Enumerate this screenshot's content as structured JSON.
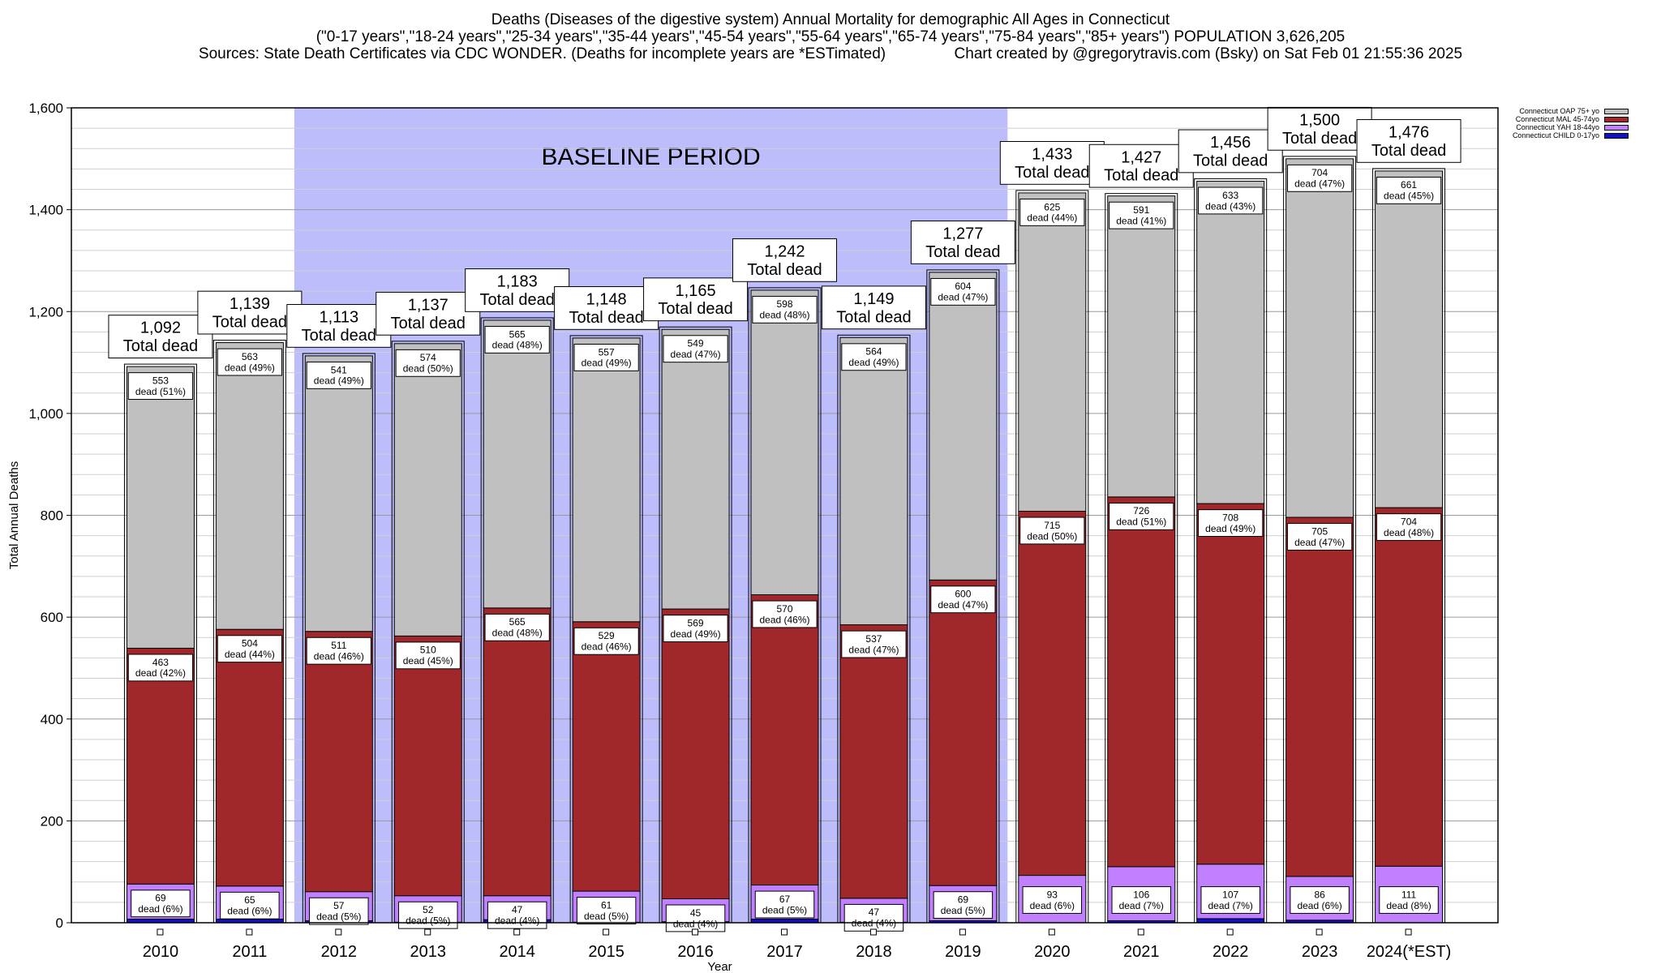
{
  "title_lines": [
    "Deaths (Diseases of the digestive system) Annual Mortality for demographic All Ages in Connecticut",
    "(\"0-17 years\",\"18-24 years\",\"25-34 years\",\"35-44 years\",\"45-54 years\",\"55-64 years\",\"65-74 years\",\"75-84 years\",\"85+ years\") POPULATION 3,626,205",
    "Sources: State Death Certificates via CDC WONDER. (Deaths for incomplete years are *ESTimated)                Chart created by @gregorytravis.com (Bsky) on Sat Feb 01 21:55:36 2025"
  ],
  "chart_data": {
    "type": "bar",
    "stacked": true,
    "xlabel": "Year",
    "ylabel": "Total Annual Deaths",
    "ylim": [
      0,
      1600
    ],
    "yticks": [
      "0",
      "200",
      "400",
      "600",
      "800",
      "1,000",
      "1,200",
      "1,400",
      "1,600"
    ],
    "grid": true,
    "legend_position": "top-right",
    "shaded_region": {
      "label": "BASELINE PERIOD",
      "from": "2012",
      "to": "2019",
      "color": "#bdbdfb"
    },
    "total_suffix": "Total dead",
    "categories": [
      "2010",
      "2011",
      "2012",
      "2013",
      "2014",
      "2015",
      "2016",
      "2017",
      "2018",
      "2019",
      "2020",
      "2021",
      "2022",
      "2023",
      "2024(*EST)"
    ],
    "totals": [
      "1,092",
      "1,139",
      "1,113",
      "1,137",
      "1,183",
      "1,148",
      "1,165",
      "1,242",
      "1,149",
      "1,277",
      "1,433",
      "1,427",
      "1,456",
      "1,500",
      "1,476"
    ],
    "series": [
      {
        "name": "Connecticut CHILD 0-17yo",
        "color": "#1010c8",
        "values": [
          7,
          7,
          4,
          1,
          6,
          1,
          2,
          7,
          1,
          4,
          0,
          4,
          8,
          5,
          0
        ],
        "labels": [
          "",
          "",
          "",
          "",
          "",
          "",
          "",
          "",
          "",
          "",
          "",
          "",
          "",
          "",
          ""
        ]
      },
      {
        "name": "Connecticut YAH 18-44yo",
        "color": "#c080ff",
        "values": [
          69,
          65,
          57,
          52,
          47,
          61,
          45,
          67,
          47,
          69,
          93,
          106,
          107,
          86,
          111
        ],
        "labels": [
          "69\ndead (6%)",
          "65\ndead (6%)",
          "57\ndead (5%)",
          "52\ndead (5%)",
          "47\ndead (4%)",
          "61\ndead (5%)",
          "45\ndead (4%)",
          "67\ndead (5%)",
          "47\ndead (4%)",
          "69\ndead (5%)",
          "93\ndead (6%)",
          "106\ndead (7%)",
          "107\ndead (7%)",
          "86\ndead (6%)",
          "111\ndead (8%)"
        ]
      },
      {
        "name": "Connecticut MAL 45-74yo",
        "color": "#a0282a",
        "values": [
          463,
          504,
          511,
          510,
          565,
          529,
          569,
          570,
          537,
          600,
          715,
          726,
          708,
          705,
          704
        ],
        "labels": [
          "463\ndead (42%)",
          "504\ndead (44%)",
          "511\ndead (46%)",
          "510\ndead (45%)",
          "565\ndead (48%)",
          "529\ndead (46%)",
          "569\ndead (49%)",
          "570\ndead (46%)",
          "537\ndead (47%)",
          "600\ndead (47%)",
          "715\ndead (50%)",
          "726\ndead (51%)",
          "708\ndead (49%)",
          "705\ndead (47%)",
          "704\ndead (48%)"
        ]
      },
      {
        "name": "Connecticut OAP 75+ yo",
        "color": "#c0c0c0",
        "values": [
          553,
          563,
          541,
          574,
          565,
          557,
          549,
          598,
          564,
          604,
          625,
          591,
          633,
          704,
          661
        ],
        "labels": [
          "553\ndead (51%)",
          "563\ndead (49%)",
          "541\ndead (49%)",
          "574\ndead (50%)",
          "565\ndead (48%)",
          "557\ndead (49%)",
          "549\ndead (47%)",
          "598\ndead (48%)",
          "564\ndead (49%)",
          "604\ndead (47%)",
          "625\ndead (44%)",
          "591\ndead (41%)",
          "633\ndead (43%)",
          "704\ndead (47%)",
          "661\ndead (45%)"
        ]
      }
    ]
  }
}
